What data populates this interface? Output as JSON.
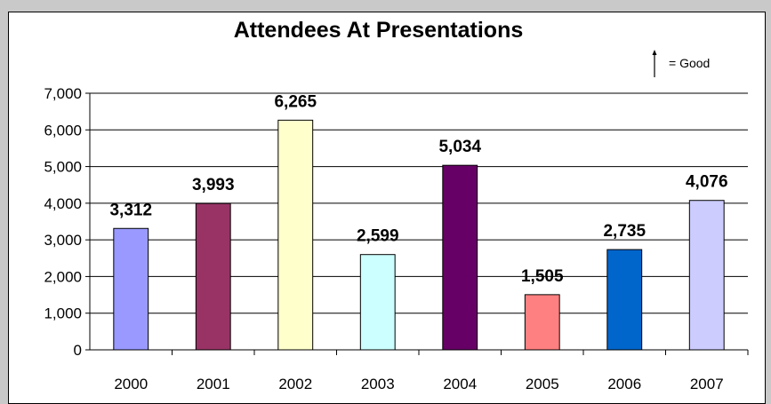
{
  "chart_data": {
    "type": "bar",
    "title": "Attendees At Presentations",
    "categories": [
      "2000",
      "2001",
      "2002",
      "2003",
      "2004",
      "2005",
      "2006",
      "2007"
    ],
    "values": [
      3312,
      3993,
      6265,
      2599,
      5034,
      1505,
      2735,
      4076
    ],
    "data_labels": [
      "3,312",
      "3,993",
      "6,265",
      "2,599",
      "5,034",
      "1,505",
      "2,735",
      "4,076"
    ],
    "bar_colors": [
      "#9999ff",
      "#993366",
      "#ffffcc",
      "#ccffff",
      "#660066",
      "#ff8080",
      "#0066cc",
      "#ccccff"
    ],
    "ylim": [
      0,
      7000
    ],
    "yticks": [
      0,
      1000,
      2000,
      3000,
      4000,
      5000,
      6000,
      7000
    ],
    "ytick_labels": [
      "0",
      "1,000",
      "2,000",
      "3,000",
      "4,000",
      "5,000",
      "6,000",
      "7,000"
    ],
    "grid": true,
    "xlabel": "",
    "ylabel": ""
  },
  "legend_note": {
    "icon": "up-arrow-icon",
    "text": "= Good"
  }
}
